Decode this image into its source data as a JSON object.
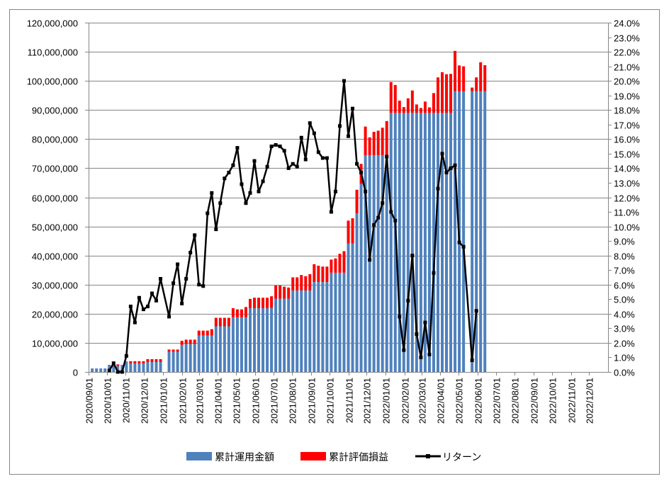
{
  "chart_data": {
    "type": "bar+line",
    "title": "",
    "x_axis": {
      "type": "date",
      "min": "2020/09/01",
      "max": "2023/01/01",
      "tick_interval": "month",
      "tick_label_format": "YYYY/MM/01"
    },
    "y_left": {
      "min": 0,
      "max": 120000000,
      "step": 10000000,
      "format": "thousands"
    },
    "y_right": {
      "min": 0,
      "max": 24.0,
      "step": 1.0,
      "format": "percent1"
    },
    "grid": true,
    "legend_placement": "bottom",
    "start_date": "2020/09/07",
    "interval_days": 7,
    "values_unit_millions_jpy": true,
    "series": [
      {
        "name": "累計運用金額",
        "type": "bar",
        "stack": "a",
        "axis": "left",
        "color": "#4f81bd",
        "values": [
          1.2,
          1.2,
          1.2,
          1.2,
          2.2,
          2.0,
          2.0,
          2.4,
          3.5,
          2.9,
          2.9,
          2.9,
          2.9,
          3.4,
          3.4,
          3.4,
          3.4,
          null,
          6.9,
          6.9,
          6.9,
          9.3,
          9.6,
          9.6,
          9.6,
          12.5,
          12.5,
          12.5,
          12.5,
          15.7,
          15.7,
          15.7,
          15.7,
          18.8,
          18.8,
          18.8,
          18.8,
          21.9,
          21.9,
          21.9,
          21.9,
          21.9,
          22.0,
          25.2,
          25.2,
          25.2,
          25.2,
          28.0,
          28.0,
          28.0,
          28.0,
          28.0,
          30.9,
          30.9,
          30.9,
          30.9,
          34.1,
          34.1,
          34.1,
          34.1,
          44.1,
          44.1,
          54.5,
          64.6,
          74.5,
          74.5,
          74.5,
          74.5,
          74.5,
          74.5,
          89.0,
          89.0,
          89.0,
          89.0,
          89.0,
          89.0,
          89.0,
          89.0,
          89.0,
          89.0,
          89.0,
          89.0,
          89.0,
          89.0,
          89.0,
          96.5,
          96.5,
          96.5,
          null,
          96.5,
          96.5,
          96.5,
          96.5
        ]
      },
      {
        "name": "累計評価損益",
        "type": "bar",
        "stack": "a",
        "axis": "left",
        "color": "#ff0000",
        "values": [
          0,
          0,
          0,
          0,
          0.2,
          0.4,
          0.6,
          0,
          0.1,
          0.8,
          0.8,
          0.8,
          0.8,
          1.0,
          1.0,
          1.0,
          1.0,
          null,
          0.8,
          0.8,
          0.8,
          1.4,
          1.5,
          1.5,
          1.5,
          1.7,
          1.7,
          1.7,
          2.2,
          2.9,
          2.9,
          2.9,
          2.9,
          3.1,
          2.7,
          2.7,
          3.5,
          3.2,
          3.6,
          3.6,
          3.6,
          3.6,
          4.0,
          4.5,
          4.5,
          4.1,
          3.8,
          4.5,
          4.5,
          5.3,
          4.9,
          5.6,
          6.1,
          5.6,
          5.3,
          5.3,
          4.5,
          4.9,
          6.5,
          7.4,
          7.9,
          8.7,
          8.1,
          6.9,
          9.8,
          6.1,
          8.0,
          8.4,
          9.4,
          11.7,
          10.6,
          9.6,
          4.2,
          2.0,
          5.0,
          7.7,
          2.9,
          1.7,
          3.9,
          1.9,
          6.8,
          12.2,
          14.0,
          13.3,
          13.4,
          13.8,
          8.8,
          8.5,
          null,
          1.2,
          4.7,
          9.9,
          8.9
        ]
      },
      {
        "name": "リターン",
        "type": "line",
        "axis": "right",
        "color": "#000000",
        "values": [
          null,
          null,
          null,
          null,
          0.1,
          0.6,
          0,
          0,
          1.1,
          4.5,
          3.4,
          5.1,
          4.3,
          4.5,
          5.4,
          4.9,
          6.4,
          null,
          3.8,
          6.1,
          7.4,
          4.7,
          6.4,
          8.2,
          9.4,
          6.0,
          5.9,
          10.9,
          12.3,
          9.8,
          11.6,
          13.3,
          13.7,
          14.2,
          15.4,
          12.9,
          11.6,
          12.3,
          14.5,
          12.4,
          13.1,
          14.1,
          15.5,
          15.6,
          15.5,
          15.2,
          14.0,
          14.3,
          14.1,
          16.1,
          14.6,
          17.1,
          16.4,
          15.1,
          14.7,
          14.7,
          11.0,
          12.4,
          16.9,
          20.0,
          16.2,
          18.1,
          14.3,
          13.7,
          12.4,
          7.7,
          10.1,
          10.6,
          11.6,
          14.8,
          11.0,
          10.4,
          3.8,
          1.5,
          4.9,
          8.0,
          2.6,
          1.0,
          3.4,
          1.2,
          6.8,
          12.6,
          15.0,
          13.7,
          14.0,
          14.2,
          8.9,
          8.6,
          null,
          0.8,
          4.2,
          null,
          null
        ]
      }
    ]
  },
  "legend": {
    "invested_label": "累計運用金額",
    "gain_label": "累計評価損益",
    "return_label": "リターン"
  }
}
